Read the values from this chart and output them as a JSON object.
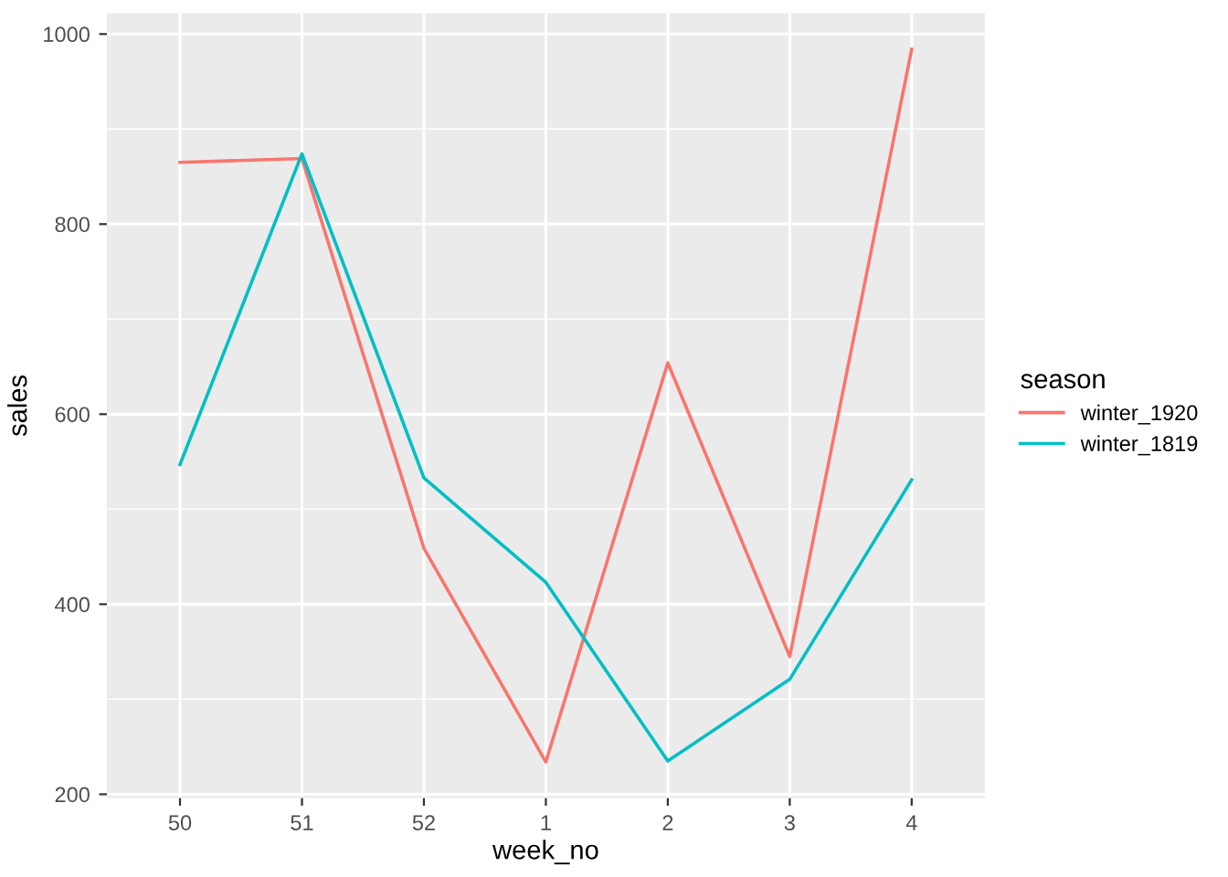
{
  "chart_data": {
    "type": "line",
    "xlabel": "week_no",
    "ylabel": "sales",
    "legend_title": "season",
    "categories": [
      "50",
      "51",
      "52",
      "1",
      "2",
      "3",
      "4"
    ],
    "series": [
      {
        "name": "winter_1920",
        "color": "#f8766d",
        "values": [
          865,
          869,
          459,
          234,
          654,
          345,
          984
        ]
      },
      {
        "name": "winter_1819",
        "color": "#00bfc4",
        "values": [
          547,
          874,
          533,
          423,
          235,
          321,
          531
        ]
      }
    ],
    "ylim": [
      196,
      1022
    ],
    "yticks": [
      200,
      {
        "value": 300,
        "label": null
      },
      400,
      {
        "value": 500,
        "label": null
      },
      600,
      {
        "value": 700,
        "label": null
      },
      800,
      {
        "value": 900,
        "label": null
      },
      1000
    ],
    "grid": true,
    "legend": "right",
    "line_style": "solid",
    "marker": "none"
  }
}
